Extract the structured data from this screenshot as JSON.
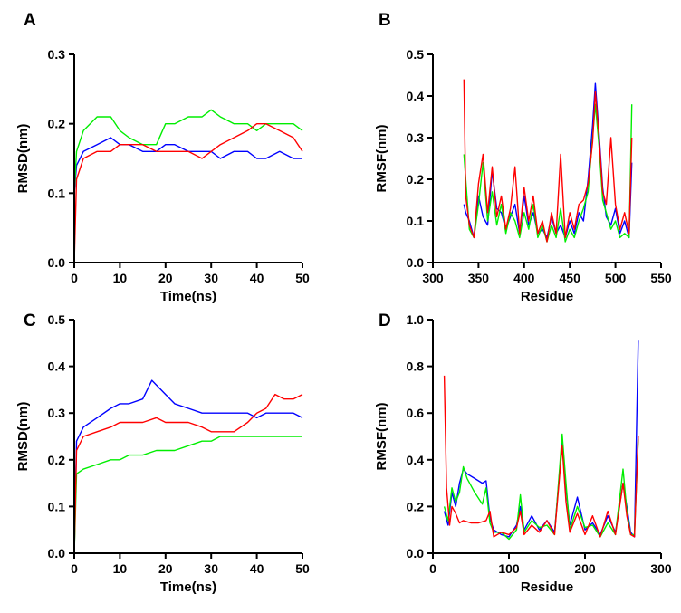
{
  "colors": {
    "series_1": "#0000ff",
    "series_2": "#00ee00",
    "series_3": "#ff0000"
  },
  "chart_data": [
    {
      "panel": "A",
      "type": "line",
      "title": "",
      "xlabel": "Time(ns)",
      "ylabel": "RMSD(nm)",
      "xlim": [
        0,
        50
      ],
      "ylim": [
        0,
        0.3
      ],
      "xticks": [
        0,
        10,
        20,
        30,
        40,
        50
      ],
      "yticks": [
        0.0,
        0.1,
        0.2,
        0.3
      ],
      "grid": false,
      "series": [
        {
          "color": "#0000ff",
          "x": [
            0,
            0.5,
            2,
            5,
            8,
            10,
            12,
            15,
            18,
            20,
            22,
            25,
            28,
            30,
            32,
            35,
            38,
            40,
            42,
            45,
            48,
            50
          ],
          "y": [
            0.1,
            0.14,
            0.16,
            0.17,
            0.18,
            0.17,
            0.17,
            0.16,
            0.16,
            0.17,
            0.17,
            0.16,
            0.16,
            0.16,
            0.15,
            0.16,
            0.16,
            0.15,
            0.15,
            0.16,
            0.15,
            0.15
          ]
        },
        {
          "color": "#00ee00",
          "x": [
            0,
            0.5,
            2,
            5,
            8,
            10,
            12,
            15,
            18,
            20,
            22,
            25,
            28,
            30,
            32,
            35,
            38,
            40,
            42,
            45,
            48,
            50
          ],
          "y": [
            0.1,
            0.16,
            0.19,
            0.21,
            0.21,
            0.19,
            0.18,
            0.17,
            0.17,
            0.2,
            0.2,
            0.21,
            0.21,
            0.22,
            0.21,
            0.2,
            0.2,
            0.19,
            0.2,
            0.2,
            0.2,
            0.19
          ]
        },
        {
          "color": "#ff0000",
          "x": [
            0,
            0.5,
            2,
            5,
            8,
            10,
            12,
            15,
            18,
            20,
            22,
            25,
            28,
            30,
            32,
            35,
            38,
            40,
            42,
            45,
            48,
            50
          ],
          "y": [
            0.0,
            0.12,
            0.15,
            0.16,
            0.16,
            0.17,
            0.17,
            0.17,
            0.16,
            0.16,
            0.16,
            0.16,
            0.15,
            0.16,
            0.17,
            0.18,
            0.19,
            0.2,
            0.2,
            0.19,
            0.18,
            0.16
          ]
        }
      ]
    },
    {
      "panel": "B",
      "type": "line",
      "title": "",
      "xlabel": "Residue",
      "ylabel": "RMSF(nm)",
      "xlim": [
        300,
        550
      ],
      "ylim": [
        0,
        0.5
      ],
      "xticks": [
        300,
        350,
        400,
        450,
        500,
        550
      ],
      "yticks": [
        0.0,
        0.1,
        0.2,
        0.3,
        0.4,
        0.5
      ],
      "grid": false,
      "series": [
        {
          "color": "#0000ff",
          "x": [
            334,
            336,
            340,
            345,
            350,
            355,
            360,
            365,
            370,
            375,
            380,
            385,
            390,
            395,
            400,
            405,
            410,
            415,
            420,
            425,
            430,
            435,
            440,
            445,
            450,
            455,
            460,
            465,
            470,
            475,
            478,
            482,
            486,
            490,
            495,
            500,
            505,
            510,
            515,
            518
          ],
          "y": [
            0.14,
            0.12,
            0.1,
            0.06,
            0.16,
            0.11,
            0.09,
            0.22,
            0.13,
            0.12,
            0.08,
            0.11,
            0.14,
            0.07,
            0.16,
            0.09,
            0.12,
            0.07,
            0.08,
            0.06,
            0.11,
            0.07,
            0.09,
            0.06,
            0.1,
            0.07,
            0.12,
            0.1,
            0.2,
            0.33,
            0.43,
            0.31,
            0.18,
            0.11,
            0.09,
            0.13,
            0.07,
            0.1,
            0.06,
            0.24
          ]
        },
        {
          "color": "#00ee00",
          "x": [
            334,
            336,
            340,
            345,
            350,
            355,
            360,
            365,
            370,
            375,
            380,
            385,
            390,
            395,
            400,
            405,
            410,
            415,
            420,
            425,
            430,
            435,
            440,
            445,
            450,
            455,
            460,
            465,
            470,
            475,
            478,
            482,
            486,
            490,
            495,
            500,
            505,
            510,
            515,
            518
          ],
          "y": [
            0.26,
            0.2,
            0.08,
            0.06,
            0.14,
            0.24,
            0.1,
            0.17,
            0.09,
            0.14,
            0.07,
            0.12,
            0.1,
            0.06,
            0.12,
            0.08,
            0.14,
            0.06,
            0.09,
            0.05,
            0.09,
            0.06,
            0.13,
            0.05,
            0.08,
            0.06,
            0.1,
            0.13,
            0.17,
            0.3,
            0.38,
            0.28,
            0.15,
            0.12,
            0.08,
            0.1,
            0.06,
            0.07,
            0.06,
            0.38
          ]
        },
        {
          "color": "#ff0000",
          "x": [
            334,
            336,
            340,
            345,
            350,
            355,
            360,
            365,
            370,
            375,
            380,
            385,
            390,
            395,
            400,
            405,
            410,
            415,
            420,
            425,
            430,
            435,
            440,
            445,
            450,
            455,
            460,
            465,
            470,
            475,
            478,
            482,
            486,
            490,
            495,
            500,
            505,
            510,
            515,
            518
          ],
          "y": [
            0.44,
            0.16,
            0.09,
            0.06,
            0.19,
            0.26,
            0.12,
            0.23,
            0.11,
            0.16,
            0.08,
            0.13,
            0.23,
            0.07,
            0.18,
            0.1,
            0.16,
            0.07,
            0.1,
            0.05,
            0.12,
            0.07,
            0.26,
            0.06,
            0.12,
            0.08,
            0.14,
            0.15,
            0.19,
            0.29,
            0.41,
            0.3,
            0.17,
            0.14,
            0.3,
            0.14,
            0.08,
            0.12,
            0.07,
            0.3
          ]
        }
      ]
    },
    {
      "panel": "C",
      "type": "line",
      "title": "",
      "xlabel": "Time(ns)",
      "ylabel": "RMSD(nm)",
      "xlim": [
        0,
        50
      ],
      "ylim": [
        0,
        0.5
      ],
      "xticks": [
        0,
        10,
        20,
        30,
        40,
        50
      ],
      "yticks": [
        0.0,
        0.1,
        0.2,
        0.3,
        0.4,
        0.5
      ],
      "grid": false,
      "series": [
        {
          "color": "#0000ff",
          "x": [
            0,
            0.5,
            2,
            5,
            8,
            10,
            12,
            15,
            17,
            18,
            20,
            22,
            25,
            28,
            30,
            32,
            35,
            38,
            40,
            42,
            45,
            48,
            50
          ],
          "y": [
            0.0,
            0.24,
            0.27,
            0.29,
            0.31,
            0.32,
            0.32,
            0.33,
            0.37,
            0.36,
            0.34,
            0.32,
            0.31,
            0.3,
            0.3,
            0.3,
            0.3,
            0.3,
            0.29,
            0.3,
            0.3,
            0.3,
            0.29
          ]
        },
        {
          "color": "#00ee00",
          "x": [
            0,
            0.5,
            2,
            5,
            8,
            10,
            12,
            15,
            18,
            20,
            22,
            25,
            28,
            30,
            32,
            35,
            38,
            40,
            42,
            45,
            48,
            50
          ],
          "y": [
            0.0,
            0.17,
            0.18,
            0.19,
            0.2,
            0.2,
            0.21,
            0.21,
            0.22,
            0.22,
            0.22,
            0.23,
            0.24,
            0.24,
            0.25,
            0.25,
            0.25,
            0.25,
            0.25,
            0.25,
            0.25,
            0.25
          ]
        },
        {
          "color": "#ff0000",
          "x": [
            0,
            0.5,
            2,
            5,
            8,
            10,
            12,
            15,
            18,
            20,
            22,
            25,
            28,
            30,
            32,
            35,
            38,
            40,
            42,
            44,
            46,
            48,
            50
          ],
          "y": [
            0.0,
            0.22,
            0.25,
            0.26,
            0.27,
            0.28,
            0.28,
            0.28,
            0.29,
            0.28,
            0.28,
            0.28,
            0.27,
            0.26,
            0.26,
            0.26,
            0.28,
            0.3,
            0.31,
            0.34,
            0.33,
            0.33,
            0.34
          ]
        }
      ]
    },
    {
      "panel": "D",
      "type": "line",
      "title": "",
      "xlabel": "Residue",
      "ylabel": "RMSF(nm)",
      "xlim": [
        0,
        300
      ],
      "ylim": [
        0,
        1.0
      ],
      "xticks": [
        0,
        100,
        200,
        300
      ],
      "yticks": [
        0.0,
        0.2,
        0.4,
        0.6,
        0.8,
        1.0
      ],
      "grid": false,
      "series": [
        {
          "color": "#0000ff",
          "x": [
            15,
            20,
            25,
            30,
            35,
            40,
            45,
            55,
            65,
            70,
            75,
            80,
            90,
            100,
            110,
            115,
            120,
            130,
            140,
            150,
            160,
            170,
            175,
            180,
            190,
            200,
            210,
            220,
            230,
            240,
            250,
            255,
            260,
            265,
            270
          ],
          "y": [
            0.18,
            0.12,
            0.26,
            0.2,
            0.3,
            0.36,
            0.34,
            0.32,
            0.3,
            0.31,
            0.15,
            0.1,
            0.08,
            0.07,
            0.12,
            0.2,
            0.1,
            0.16,
            0.1,
            0.14,
            0.09,
            0.48,
            0.28,
            0.12,
            0.24,
            0.1,
            0.13,
            0.08,
            0.16,
            0.09,
            0.3,
            0.2,
            0.09,
            0.07,
            0.91
          ]
        },
        {
          "color": "#00ee00",
          "x": [
            15,
            20,
            25,
            30,
            35,
            40,
            45,
            55,
            65,
            70,
            75,
            80,
            90,
            100,
            110,
            115,
            120,
            130,
            140,
            150,
            160,
            170,
            175,
            180,
            190,
            200,
            210,
            220,
            230,
            240,
            250,
            255,
            260,
            265,
            270
          ],
          "y": [
            0.2,
            0.14,
            0.28,
            0.22,
            0.26,
            0.37,
            0.32,
            0.26,
            0.21,
            0.28,
            0.13,
            0.09,
            0.09,
            0.06,
            0.1,
            0.25,
            0.09,
            0.14,
            0.11,
            0.12,
            0.08,
            0.51,
            0.3,
            0.1,
            0.2,
            0.11,
            0.12,
            0.07,
            0.13,
            0.08,
            0.36,
            0.18,
            0.08,
            0.08,
            0.49
          ]
        },
        {
          "color": "#ff0000",
          "x": [
            15,
            18,
            22,
            25,
            30,
            35,
            40,
            50,
            60,
            70,
            75,
            80,
            90,
            100,
            110,
            115,
            120,
            130,
            140,
            150,
            160,
            170,
            175,
            180,
            190,
            200,
            210,
            220,
            230,
            240,
            250,
            255,
            260,
            265,
            270
          ],
          "y": [
            0.76,
            0.28,
            0.12,
            0.2,
            0.17,
            0.13,
            0.14,
            0.13,
            0.13,
            0.14,
            0.18,
            0.07,
            0.09,
            0.08,
            0.11,
            0.18,
            0.08,
            0.12,
            0.09,
            0.14,
            0.08,
            0.46,
            0.22,
            0.09,
            0.17,
            0.08,
            0.16,
            0.07,
            0.18,
            0.08,
            0.3,
            0.16,
            0.08,
            0.07,
            0.5
          ]
        }
      ]
    }
  ]
}
